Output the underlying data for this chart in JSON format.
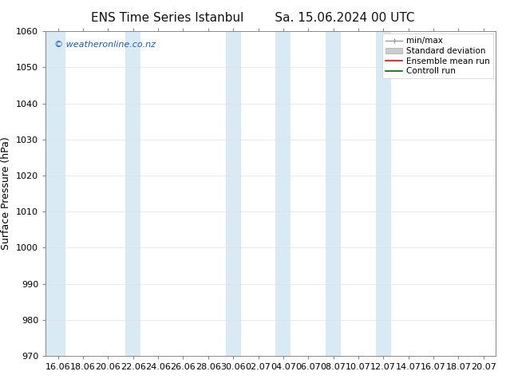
{
  "title1": "ENS Time Series Istanbul",
  "title2": "Sa. 15.06.2024 00 UTC",
  "ylabel": "Surface Pressure (hPa)",
  "ylim": [
    970,
    1060
  ],
  "yticks": [
    970,
    980,
    990,
    1000,
    1010,
    1020,
    1030,
    1040,
    1050,
    1060
  ],
  "xtick_labels": [
    "16.06",
    "18.06",
    "20.06",
    "22.06",
    "24.06",
    "26.06",
    "28.06",
    "30.06",
    "02.07",
    "04.07",
    "06.07",
    "08.07",
    "10.07",
    "12.07",
    "14.07",
    "16.07",
    "18.07",
    "20.07"
  ],
  "background_color": "#ffffff",
  "shaded_band_color": "#daeaf5",
  "copyright_text": "© weatheronline.co.nz",
  "copyright_color": "#1a5fa8",
  "legend_entries": [
    "min/max",
    "Standard deviation",
    "Ensemble mean run",
    "Controll run"
  ],
  "legend_line_colors": [
    "#999999",
    "#cccccc",
    "#ff0000",
    "#006600"
  ],
  "title_fontsize": 11,
  "ylabel_fontsize": 9,
  "tick_fontsize": 8,
  "legend_fontsize": 7.5,
  "copyright_fontsize": 8,
  "shade_xranges": [
    [
      0.0,
      0.5
    ],
    [
      2.0,
      2.5
    ],
    [
      4.5,
      5.0
    ],
    [
      7.0,
      7.5
    ],
    [
      9.0,
      9.5
    ],
    [
      11.0,
      11.5
    ],
    [
      13.5,
      14.0
    ]
  ]
}
